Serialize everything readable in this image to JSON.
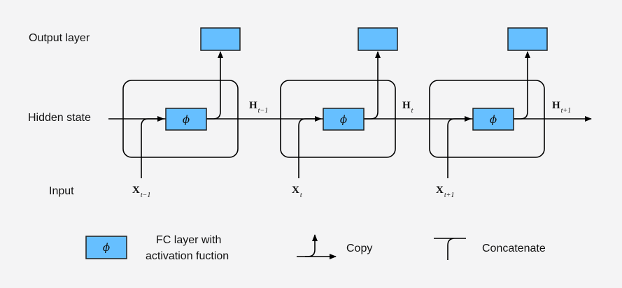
{
  "row_labels": {
    "output_layer": "Output layer",
    "hidden_state": "Hidden state",
    "input": "Input"
  },
  "timesteps": [
    {
      "x_var": "X",
      "x_sub": "t−1",
      "h_var": "H",
      "h_sub": "t−1",
      "phi": "ϕ"
    },
    {
      "x_var": "X",
      "x_sub": "t",
      "h_var": "H",
      "h_sub": "t",
      "phi": "ϕ"
    },
    {
      "x_var": "X",
      "x_sub": "t+1",
      "h_var": "H",
      "h_sub": "t+1",
      "phi": "ϕ"
    }
  ],
  "legend": {
    "fc_symbol": "ϕ",
    "fc_line1": "FC layer with",
    "fc_line2": "activation fuction",
    "copy": "Copy",
    "concatenate": "Concatenate"
  },
  "colors": {
    "block_fill": "#66bfff",
    "block_stroke": "#1f1f1f",
    "background": "#f4f4f5",
    "line": "#000000"
  }
}
